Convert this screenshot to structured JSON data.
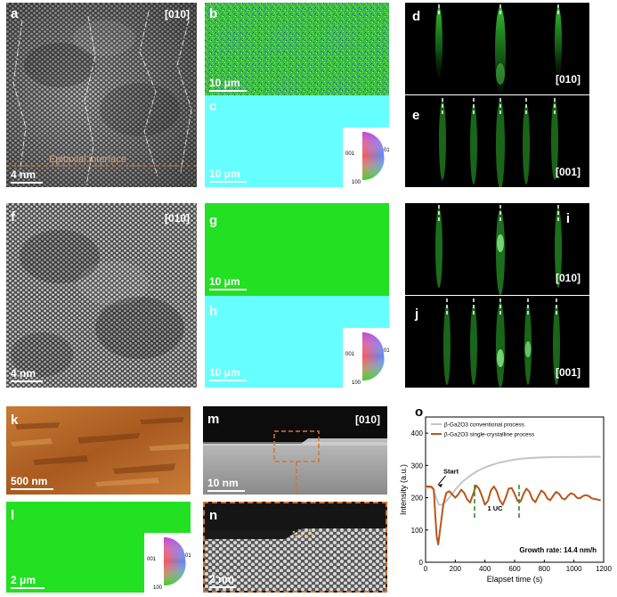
{
  "figure": {
    "panel_labels": {
      "a": "a",
      "b": "b",
      "c": "c",
      "d": "d",
      "e": "e",
      "f": "f",
      "g": "g",
      "h": "h",
      "i": "i",
      "j": "j",
      "k": "k",
      "l": "l",
      "m": "m",
      "n": "n",
      "o": "o"
    },
    "zone_labels": {
      "a": "[010]",
      "d": "[010]",
      "e": "[001]",
      "f": "[010]",
      "i": "[010]",
      "j": "[001]",
      "m": "[010]"
    },
    "scale_bars": {
      "a": "4 nm",
      "b": "10 μm",
      "c": "10 μm",
      "f": "4 nm",
      "g": "10 μm",
      "h": "10 μm",
      "k": "500 nm",
      "l": "2 μm",
      "m": "10 nm",
      "n": "2 nm"
    },
    "interface_label": "Epitaxial interface",
    "ipf_legend": {
      "top": "111",
      "left": "001",
      "right": "010",
      "bottom": "100"
    },
    "colors": {
      "ebsd_green": "#22e022",
      "ebsd_cyan": "#66ffff",
      "rheed_green": "#34d034",
      "conventional_line": "#c4c4c4",
      "single_crystal_line": "#b8561a",
      "marker_dash": "#2e8b2e",
      "inset_border": "#d9732b"
    }
  },
  "chart_data": {
    "type": "line",
    "title": "",
    "xlabel": "Elapset time (s)",
    "ylabel": "Intensity (a.u.)",
    "xlim": [
      0,
      1200
    ],
    "ylim": [
      0,
      450
    ],
    "xticks": [
      0,
      200,
      400,
      600,
      800,
      1000,
      1200
    ],
    "yticks": [
      0,
      100,
      200,
      300,
      400
    ],
    "legend_position": "top",
    "series": [
      {
        "name": "β-Ga2O3 conventional process",
        "x": [
          0,
          30,
          50,
          70,
          90,
          110,
          130,
          160,
          200,
          250,
          300,
          350,
          400,
          450,
          500,
          550,
          600,
          650,
          700,
          800,
          900,
          1000,
          1100,
          1180
        ],
        "y": [
          230,
          232,
          228,
          200,
          178,
          178,
          185,
          200,
          225,
          250,
          268,
          283,
          294,
          302,
          309,
          314,
          318,
          321,
          323,
          325,
          326,
          326,
          327,
          327
        ]
      },
      {
        "name": "β-Ga2O3 single-crystalline process",
        "x": [
          0,
          20,
          40,
          55,
          65,
          75,
          85,
          100,
          120,
          140,
          160,
          180,
          200,
          220,
          240,
          260,
          280,
          300,
          320,
          340,
          360,
          380,
          400,
          420,
          440,
          460,
          480,
          500,
          520,
          540,
          560,
          580,
          600,
          620,
          640,
          660,
          680,
          700,
          720,
          740,
          760,
          780,
          800,
          820,
          840,
          860,
          880,
          900,
          920,
          940,
          960,
          980,
          1000,
          1020,
          1040,
          1060,
          1080,
          1100,
          1120,
          1140,
          1160,
          1180
        ],
        "y": [
          235,
          235,
          234,
          225,
          150,
          80,
          55,
          110,
          180,
          215,
          220,
          210,
          200,
          210,
          225,
          215,
          195,
          185,
          210,
          238,
          228,
          205,
          178,
          190,
          222,
          235,
          220,
          192,
          178,
          200,
          228,
          230,
          212,
          190,
          188,
          212,
          228,
          218,
          195,
          186,
          205,
          222,
          215,
          198,
          192,
          206,
          218,
          212,
          198,
          195,
          206,
          214,
          210,
          200,
          198,
          205,
          208,
          205,
          198,
          196,
          194,
          192
        ]
      }
    ],
    "annotations": {
      "start": "Start",
      "unit_cell": "1 UC",
      "growth_rate": "Growth rate: 14.4 nm/h",
      "uc_marker_x": [
        330,
        630
      ]
    }
  }
}
